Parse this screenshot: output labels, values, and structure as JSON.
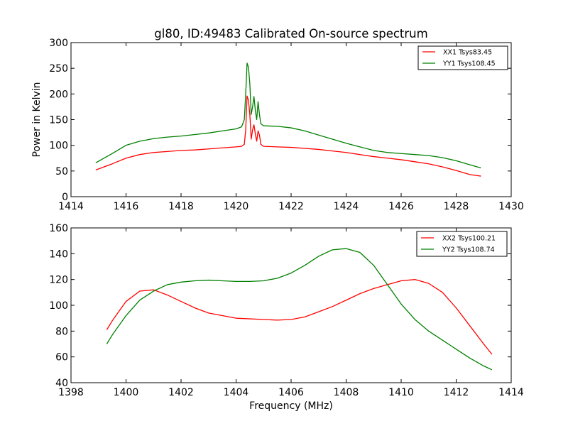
{
  "figure": {
    "title": "gl80, ID:49483 Calibrated On-source spectrum"
  },
  "colors": {
    "xx": "#ff0000",
    "yy": "#008000",
    "axes": "#000000",
    "background": "#ffffff"
  },
  "chart_data": [
    {
      "type": "line",
      "title": "gl80, ID:49483 Calibrated On-source spectrum",
      "xlabel": "",
      "ylabel": "Power in Kelvin",
      "xlim": [
        1414,
        1430
      ],
      "ylim": [
        0,
        300
      ],
      "xticks": [
        1414,
        1416,
        1418,
        1420,
        1422,
        1424,
        1426,
        1428,
        1430
      ],
      "yticks": [
        0,
        50,
        100,
        150,
        200,
        250,
        300
      ],
      "grid": false,
      "legend_position": "top-right",
      "series": [
        {
          "name": "XX1 Tsys83.45",
          "color": "#ff0000",
          "x": [
            1414.9,
            1415.5,
            1416,
            1416.5,
            1417,
            1417.5,
            1418,
            1418.5,
            1419,
            1419.5,
            1420,
            1420.2,
            1420.3,
            1420.35,
            1420.4,
            1420.45,
            1420.5,
            1420.55,
            1420.6,
            1420.65,
            1420.7,
            1420.75,
            1420.8,
            1420.85,
            1420.9,
            1421,
            1421.5,
            1422,
            1422.5,
            1423,
            1423.5,
            1424,
            1424.5,
            1425,
            1425.5,
            1426,
            1426.5,
            1427,
            1427.5,
            1428,
            1428.5,
            1428.9
          ],
          "y": [
            52,
            64,
            75,
            82,
            86,
            88,
            90,
            91,
            93,
            95,
            97,
            98,
            102,
            130,
            196,
            188,
            160,
            112,
            130,
            140,
            122,
            108,
            128,
            120,
            102,
            98,
            97,
            96,
            94,
            92,
            89,
            86,
            82,
            78,
            75,
            72,
            68,
            64,
            58,
            51,
            43,
            40
          ]
        },
        {
          "name": "YY1 Tsys108.45",
          "color": "#008000",
          "x": [
            1414.9,
            1415.5,
            1416,
            1416.5,
            1417,
            1417.5,
            1418,
            1418.5,
            1419,
            1419.5,
            1420,
            1420.2,
            1420.3,
            1420.35,
            1420.4,
            1420.45,
            1420.5,
            1420.55,
            1420.6,
            1420.65,
            1420.7,
            1420.75,
            1420.8,
            1420.85,
            1420.9,
            1421,
            1421.5,
            1422,
            1422.5,
            1423,
            1423.5,
            1424,
            1424.5,
            1425,
            1425.5,
            1426,
            1426.5,
            1427,
            1427.5,
            1428,
            1428.5,
            1428.9
          ],
          "y": [
            66,
            84,
            100,
            108,
            113,
            116,
            118,
            121,
            124,
            128,
            132,
            136,
            150,
            200,
            260,
            252,
            220,
            160,
            175,
            195,
            168,
            150,
            185,
            160,
            142,
            138,
            137,
            134,
            128,
            120,
            112,
            104,
            97,
            90,
            86,
            84,
            82,
            80,
            76,
            70,
            62,
            56
          ]
        }
      ]
    },
    {
      "type": "line",
      "title": "",
      "xlabel": "Frequency (MHz)",
      "ylabel": "",
      "xlim": [
        1398,
        1414
      ],
      "ylim": [
        40,
        160
      ],
      "xticks": [
        1398,
        1400,
        1402,
        1404,
        1406,
        1408,
        1410,
        1412,
        1414
      ],
      "yticks": [
        40,
        60,
        80,
        100,
        120,
        140,
        160
      ],
      "grid": false,
      "legend_position": "top-right",
      "series": [
        {
          "name": "XX2 Tsys100.21",
          "color": "#ff0000",
          "x": [
            1399.3,
            1399.5,
            1400,
            1400.5,
            1401,
            1401.5,
            1402,
            1402.5,
            1403,
            1403.5,
            1404,
            1404.5,
            1405,
            1405.5,
            1406,
            1406.5,
            1407,
            1407.5,
            1408,
            1408.5,
            1409,
            1409.5,
            1410,
            1410.5,
            1411,
            1411.5,
            1412,
            1412.5,
            1413,
            1413.3
          ],
          "y": [
            81,
            88,
            103,
            111,
            112,
            108,
            103,
            98,
            94,
            92,
            90,
            89.5,
            89,
            88.5,
            89,
            91,
            95,
            99,
            104,
            109,
            113,
            116,
            119,
            120,
            117,
            110,
            98,
            84,
            70,
            62
          ]
        },
        {
          "name": "YY2 Tsys108.74",
          "color": "#008000",
          "x": [
            1399.3,
            1399.5,
            1400,
            1400.5,
            1401,
            1401.5,
            1402,
            1402.5,
            1403,
            1403.5,
            1404,
            1404.5,
            1405,
            1405.5,
            1406,
            1406.5,
            1407,
            1407.5,
            1408,
            1408.5,
            1409,
            1409.5,
            1410,
            1410.5,
            1411,
            1411.5,
            1412,
            1412.5,
            1413,
            1413.3
          ],
          "y": [
            70,
            77,
            92,
            104,
            111,
            116,
            118,
            119,
            119.5,
            119,
            118.5,
            118.5,
            119,
            121,
            125,
            131,
            138,
            143,
            144,
            141,
            131,
            116,
            101,
            89,
            80,
            73,
            66,
            59,
            53,
            50
          ]
        }
      ]
    }
  ]
}
